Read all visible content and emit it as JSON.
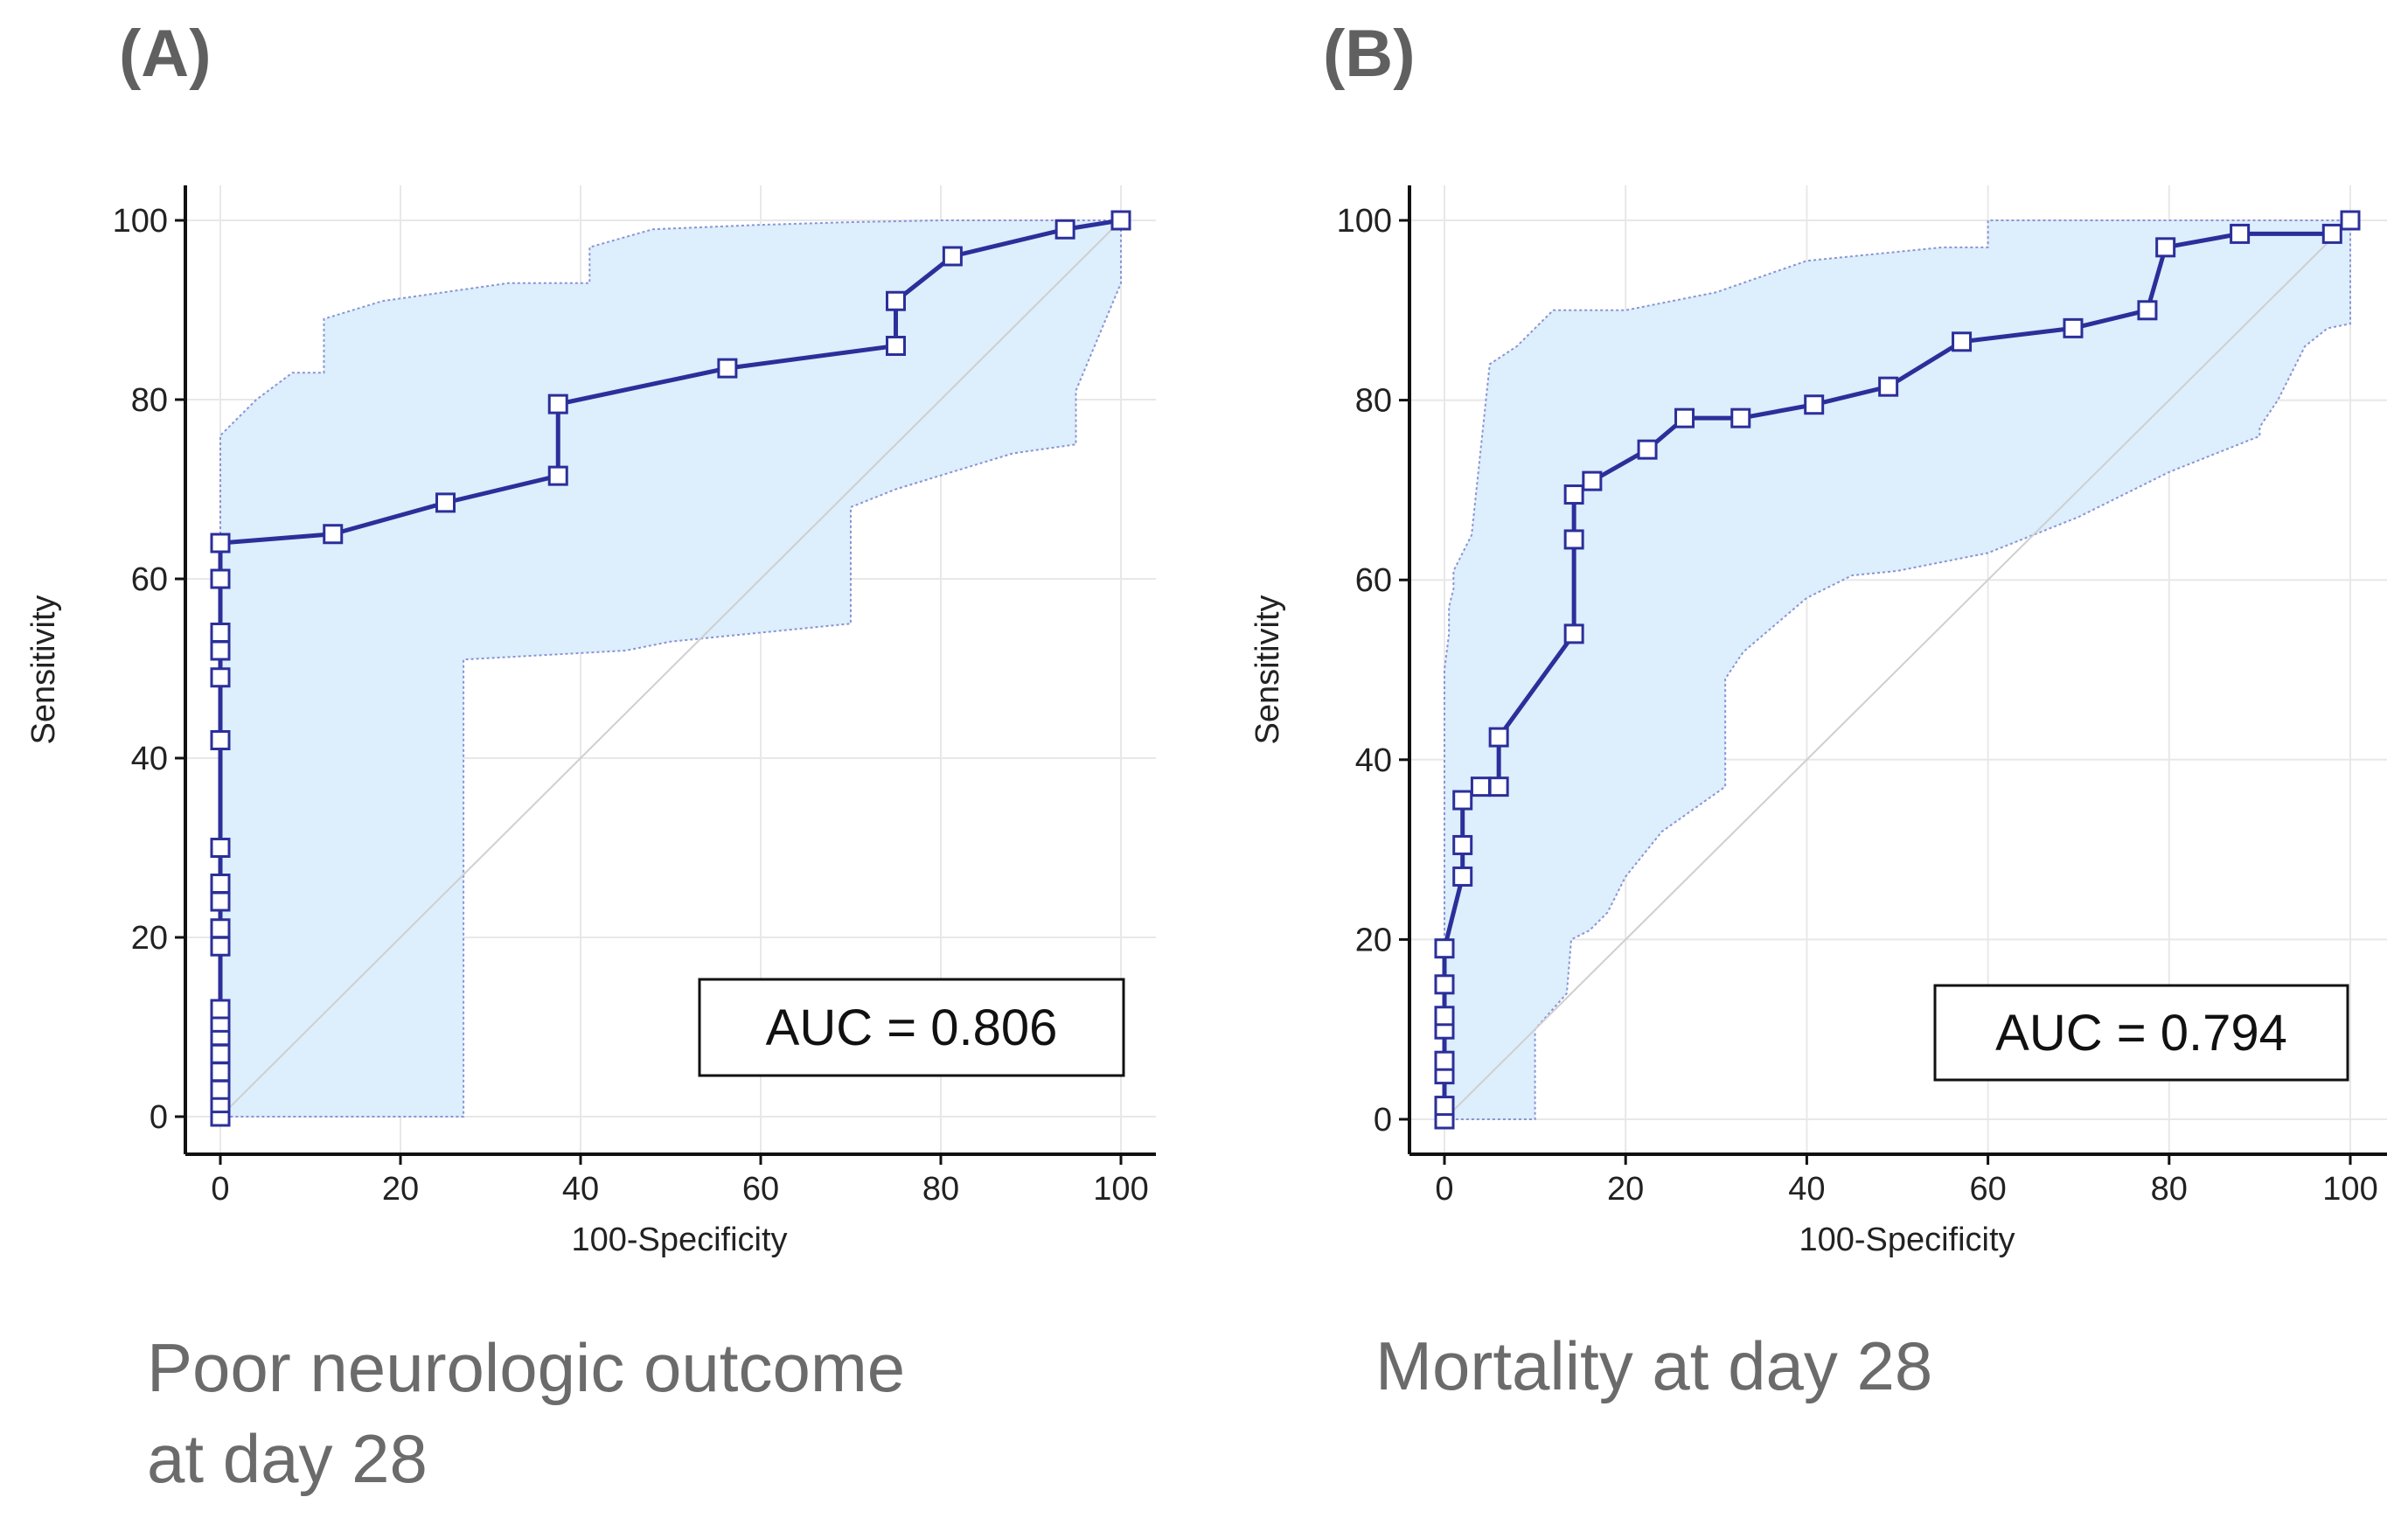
{
  "panels": [
    {
      "letter": "(A)",
      "caption_line1": "Poor neurologic outcome",
      "caption_line2": "at day 28"
    },
    {
      "letter": "(B)",
      "caption_line1": "Mortality at day 28",
      "caption_line2": ""
    }
  ],
  "colors": {
    "curve": "#2b2f9a",
    "band_fill": "#ddeefc",
    "band_edge": "#8a94d6",
    "diagonal": "#cfcfcf",
    "grid": "#e8e8e8",
    "axis": "#111111"
  },
  "chart_data": [
    {
      "type": "line",
      "title": "Poor neurologic outcome at day 28",
      "xlabel": "100-Specificity",
      "ylabel": "Sensitivity",
      "xlim": [
        0,
        100
      ],
      "ylim": [
        0,
        100
      ],
      "xticks": [
        0,
        20,
        40,
        60,
        80,
        100
      ],
      "yticks": [
        0,
        20,
        40,
        60,
        80,
        100
      ],
      "auc_label": "AUC = 0.806",
      "roc": {
        "x": [
          0,
          0,
          0,
          0,
          0,
          0,
          0,
          0,
          0,
          0,
          0,
          0,
          0,
          0,
          0,
          0,
          0,
          0,
          0,
          0,
          12.5,
          25,
          37.5,
          37.5,
          56.3,
          75,
          75,
          81.3,
          93.8,
          100
        ],
        "y": [
          0,
          1.5,
          3,
          5,
          7,
          9,
          10.5,
          12,
          19,
          21,
          24,
          26,
          30,
          42,
          49,
          52,
          54,
          60,
          64,
          64,
          65,
          68.5,
          71.5,
          79.5,
          83.5,
          86,
          91,
          96,
          99,
          100
        ]
      },
      "ci_upper": {
        "x": [
          0,
          0,
          4,
          8,
          11.5,
          11.5,
          18,
          25,
          32,
          41,
          41,
          48,
          60,
          70,
          80,
          90,
          100
        ],
        "y": [
          0,
          76,
          80,
          83,
          83,
          89,
          91,
          92,
          93,
          93,
          97,
          99,
          99.5,
          99.8,
          100,
          100,
          100
        ]
      },
      "ci_lower": {
        "x": [
          100,
          100,
          95,
          95,
          88,
          75,
          70,
          70,
          60,
          50,
          45,
          27,
          27,
          0
        ],
        "y": [
          100,
          93,
          81,
          75,
          74,
          70,
          68,
          55,
          54,
          53,
          52,
          51,
          0,
          0
        ]
      }
    },
    {
      "type": "line",
      "title": "Mortality at day 28",
      "xlabel": "100-Specificity",
      "ylabel": "Sensitivity",
      "xlim": [
        0,
        100
      ],
      "ylim": [
        0,
        100
      ],
      "xticks": [
        0,
        20,
        40,
        60,
        80,
        100
      ],
      "yticks": [
        0,
        20,
        40,
        60,
        80,
        100
      ],
      "auc_label": "AUC = 0.794",
      "roc": {
        "x": [
          0,
          0,
          0,
          0,
          0,
          0,
          0,
          0,
          2,
          2,
          2,
          4,
          6,
          6,
          14.3,
          14.3,
          14.3,
          16.3,
          22.4,
          26.5,
          32.7,
          40.8,
          49,
          57.1,
          69.4,
          77.6,
          79.6,
          87.8,
          98,
          100
        ],
        "y": [
          0,
          1.5,
          5,
          6.5,
          10,
          11.5,
          15,
          19,
          27,
          30.5,
          35.5,
          37,
          37,
          42.5,
          54,
          64.5,
          69.5,
          71,
          74.5,
          78,
          78,
          79.5,
          81.5,
          86.5,
          88,
          90,
          97,
          98.5,
          98.5,
          100
        ]
      },
      "ci_upper": {
        "x": [
          0,
          0,
          0.5,
          0.5,
          1,
          1,
          3,
          5,
          8,
          12,
          20,
          30,
          40,
          55,
          60,
          60,
          70,
          80,
          90,
          100
        ],
        "y": [
          0,
          50,
          54,
          57,
          59,
          61,
          65,
          84,
          86,
          90,
          90,
          92,
          95.5,
          97,
          97,
          100,
          100,
          100,
          100,
          100
        ]
      },
      "ci_lower": {
        "x": [
          100,
          100,
          97.5,
          95,
          92,
          90,
          90,
          80,
          70,
          60,
          50,
          45,
          40,
          33,
          31,
          31,
          24,
          20,
          18,
          16,
          14,
          13.5,
          10,
          10,
          9,
          1,
          0
        ],
        "y": [
          100,
          88.5,
          88,
          86,
          80,
          77,
          76,
          72,
          67,
          63,
          61,
          60.5,
          58,
          52,
          49,
          37,
          32,
          27,
          23,
          21,
          20,
          14,
          10,
          0,
          0,
          0,
          0
        ]
      }
    }
  ]
}
